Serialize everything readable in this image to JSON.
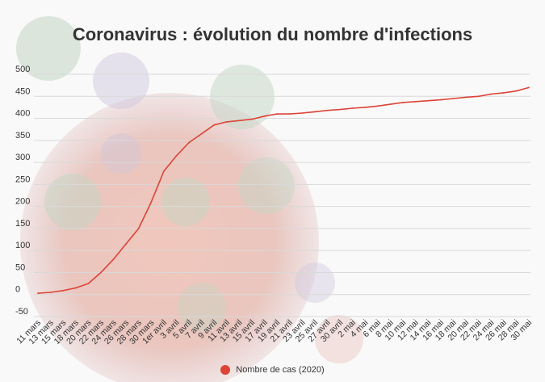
{
  "title": "Coronavirus : évolution du nombre d'infections",
  "legend": {
    "label": "Nombre de cas (2020)",
    "position": "bottom"
  },
  "colors": {
    "series": "#db4437",
    "grid": "#d9d9d9",
    "text": "#333333"
  },
  "chart_data": {
    "type": "line",
    "title": "Coronavirus : évolution du nombre d'infections",
    "xlabel": "",
    "ylabel": "",
    "ylim": [
      -50,
      500
    ],
    "yticks": [
      -50,
      0,
      50,
      100,
      150,
      200,
      250,
      300,
      350,
      400,
      450,
      500
    ],
    "grid": true,
    "categories": [
      "11 mars",
      "13 mars",
      "15 mars",
      "18 mars",
      "20 mars",
      "22 mars",
      "24 mars",
      "26 mars",
      "28 mars",
      "30 mars",
      "1er avril",
      "3 avril",
      "5 avril",
      "7 avril",
      "9 avril",
      "11 avril",
      "13 avril",
      "15 avril",
      "17 avril",
      "19 avril",
      "21 avril",
      "23 avril",
      "25 avril",
      "27 avril",
      "30 avril",
      "2 mai",
      "4 mai",
      "6 mai",
      "8 mai",
      "10 mai",
      "12 mai",
      "14 mai",
      "16 mai",
      "18 mai",
      "20 mai",
      "22 mai",
      "24 mai",
      "26 mai",
      "28 mai",
      "30 mai"
    ],
    "series": [
      {
        "name": "Nombre de cas (2020)",
        "values": [
          3,
          5,
          9,
          15,
          25,
          50,
          80,
          115,
          150,
          210,
          280,
          315,
          345,
          365,
          385,
          392,
          395,
          398,
          405,
          410,
          410,
          412,
          415,
          418,
          420,
          423,
          425,
          428,
          432,
          436,
          438,
          440,
          442,
          445,
          448,
          450,
          455,
          458,
          462,
          470
        ]
      }
    ]
  }
}
